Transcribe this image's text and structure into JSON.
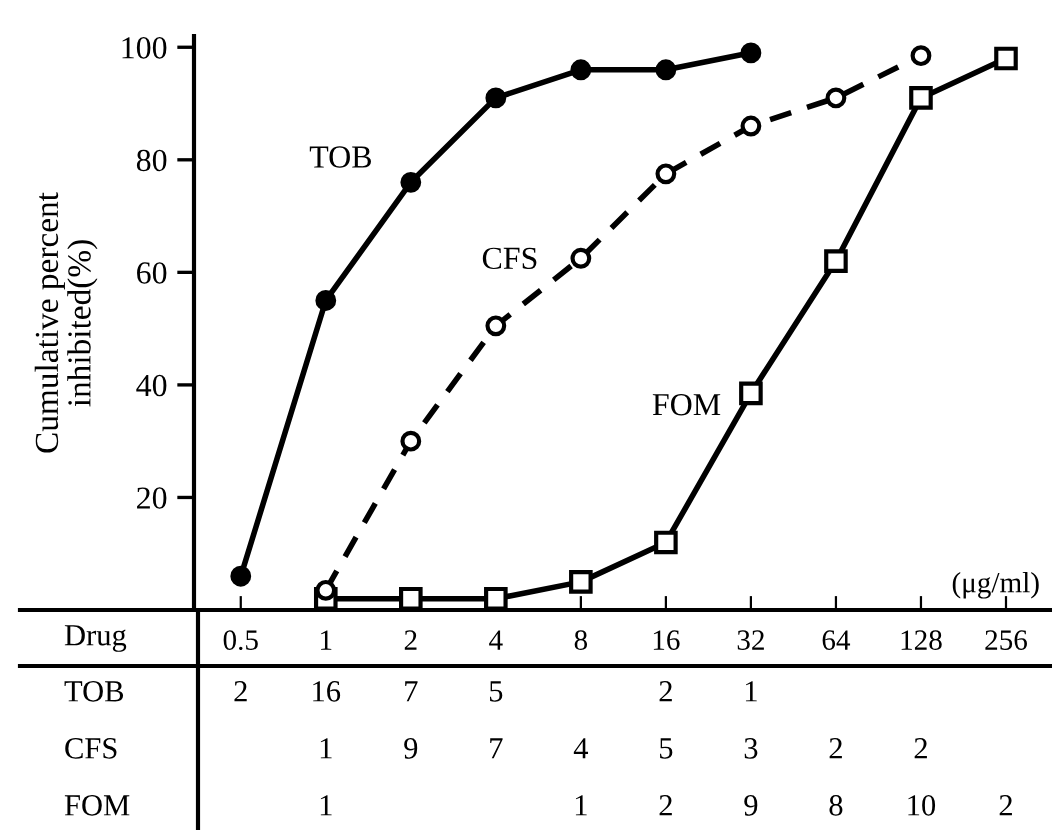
{
  "chart_data": {
    "type": "line",
    "ylabel": "Cumulative percent\ninhibited(%)",
    "categories": [
      "0.5",
      "1",
      "2",
      "4",
      "8",
      "16",
      "32",
      "64",
      "128",
      "256"
    ],
    "ylim": [
      0,
      102
    ],
    "yticks": [
      20,
      40,
      60,
      80,
      100
    ],
    "grid": false,
    "legend": false,
    "series": [
      {
        "name": "TOB",
        "color": "#000000",
        "marker": "circle",
        "line_style": "solid",
        "values": [
          6,
          55,
          76,
          91,
          96,
          96,
          99,
          null,
          null,
          null
        ]
      },
      {
        "name": "CFS",
        "color": "#000000",
        "marker": "circle",
        "line_style": "dashed",
        "values": [
          null,
          3.5,
          30,
          50.5,
          62.5,
          77.5,
          86,
          91,
          98.5,
          null
        ]
      },
      {
        "name": "FOM",
        "color": "#000000",
        "marker": "square",
        "line_style": "solid",
        "values": [
          null,
          2,
          2,
          2,
          5,
          12,
          38.5,
          62,
          91,
          98
        ]
      }
    ],
    "annotations": [
      "(μg/ml)",
      "Drug",
      "2",
      "16",
      "7",
      "5",
      "2",
      "1",
      "1",
      "9",
      "7",
      "4",
      "5",
      "3",
      "2",
      "2",
      "1",
      "1",
      "2",
      "9",
      "8",
      "10",
      "2"
    ]
  }
}
